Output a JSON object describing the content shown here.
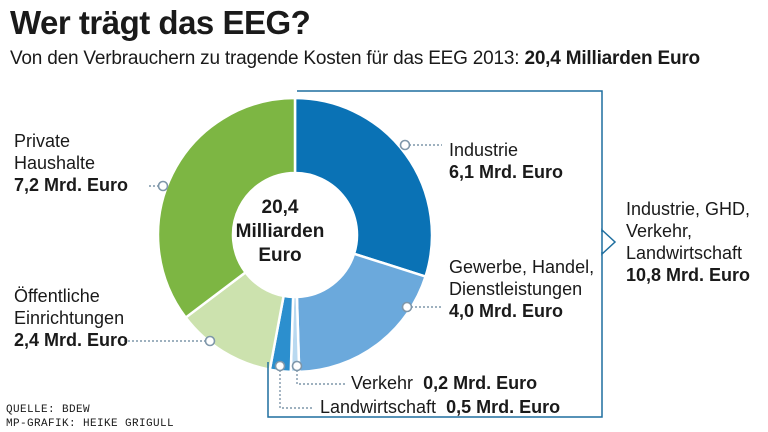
{
  "chart_data": {
    "type": "pie",
    "title": "Wer trägt das EEG?",
    "subtitle_prefix": "Von den Verbrauchern zu tragende Kosten für das EEG 2013:",
    "subtitle_value": "20,4 Milliarden Euro",
    "unit": "Mrd. Euro",
    "total": 20.4,
    "center_label": [
      "20,4",
      "Milliarden",
      "Euro"
    ],
    "slices": [
      {
        "id": "industrie",
        "name": "Industrie",
        "value": 6.1,
        "value_label": "6,1 Mrd. Euro",
        "color": "#0a72b5"
      },
      {
        "id": "ghd",
        "name": "Gewerbe, Handel, Dienstleistungen",
        "lines": [
          "Gewerbe, Handel,",
          "Dienstleistungen"
        ],
        "value": 4.0,
        "value_label": "4,0 Mrd. Euro",
        "color": "#6ba9dc"
      },
      {
        "id": "verkehr",
        "name": "Verkehr",
        "value": 0.2,
        "value_label": "0,2 Mrd. Euro",
        "color": "#b9d9f0"
      },
      {
        "id": "landwirtschaft",
        "name": "Landwirtschaft",
        "value": 0.5,
        "value_label": "0,5 Mrd. Euro",
        "color": "#2c8fce"
      },
      {
        "id": "oeffentlich",
        "name": "Öffentliche Einrichtungen",
        "lines": [
          "Öffentliche",
          "Einrichtungen"
        ],
        "value": 2.4,
        "value_label": "2,4 Mrd. Euro",
        "color": "#cce2ae"
      },
      {
        "id": "private",
        "name": "Private Haushalte",
        "lines": [
          "Private",
          "Haushalte"
        ],
        "value": 7.2,
        "value_label": "7,2 Mrd. Euro",
        "color": "#7db643"
      }
    ],
    "group": {
      "lines": [
        "Industrie, GHD,",
        "Verkehr,",
        "Landwirtschaft"
      ],
      "value": 10.8,
      "value_label": "10,8 Mrd. Euro"
    }
  },
  "credits": {
    "source": "QUELLE: BDEW",
    "graphic": "MP-GRAFIK: HEIKE GRIGULL"
  },
  "colors": {
    "line": "#7f97aa",
    "bracket": "#1f6f9f"
  }
}
